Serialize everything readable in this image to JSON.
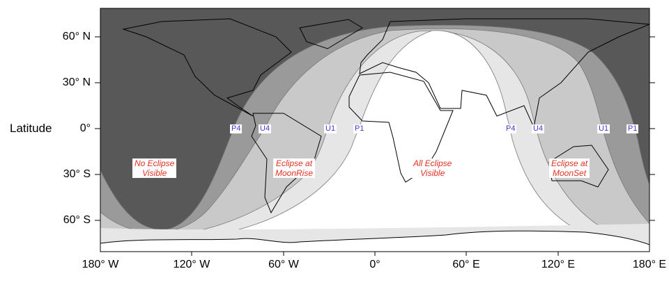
{
  "axis": {
    "ylabel": "Latitude",
    "lat_ticks": [
      "60° N",
      "30° N",
      "0°",
      "30° S",
      "60° S"
    ],
    "lon_ticks": [
      "180° W",
      "120° W",
      "60° W",
      "0°",
      "60° E",
      "120° E",
      "180° E"
    ]
  },
  "contact_curves": {
    "west": [
      "P4",
      "U4",
      "U1",
      "P1"
    ],
    "east": [
      "P4",
      "U4",
      "U1",
      "P1"
    ]
  },
  "regions": {
    "none": [
      "No Eclipse",
      "Visible"
    ],
    "moonrise": [
      "Eclipse at",
      "MoonRise"
    ],
    "all": [
      "All Eclipse",
      "Visible"
    ],
    "moonset": [
      "Eclipse at",
      "MoonSet"
    ]
  },
  "colors": {
    "no_eclipse": "#585858",
    "penumbral": "#9a9a9a",
    "partial": "#c9c9c9",
    "umbral": "#e6e6e6",
    "all_visible": "#ffffff",
    "label_red": "#e03020",
    "label_blue": "#3a3ad0"
  }
}
